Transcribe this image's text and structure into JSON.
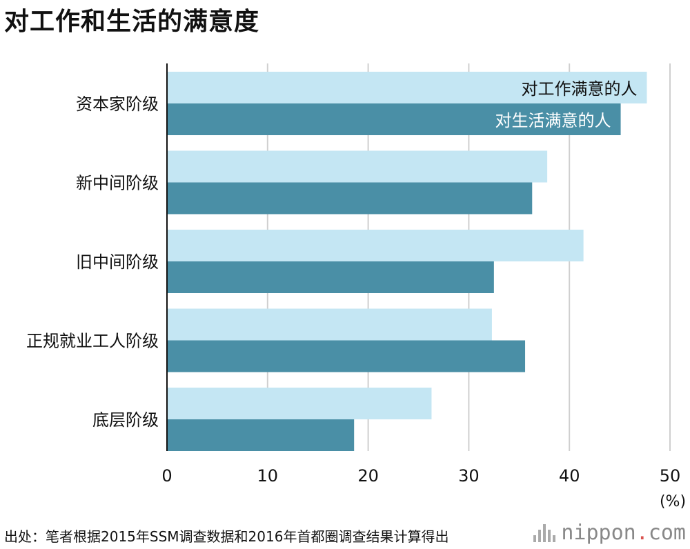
{
  "title": "对工作和生活的满意度",
  "source": "出处：笔者根据2015年SSM调查数据和2016年首都圈调查结果计算得出",
  "logo": {
    "name": "nippon",
    "dot": ".",
    "suffix": "com"
  },
  "colors": {
    "work": "#c4e6f3",
    "life": "#4a8fa6",
    "grid": "#cfcfcf",
    "axis": "#111111"
  },
  "chart_data": {
    "type": "bar",
    "orientation": "horizontal",
    "categories": [
      "资本家阶级",
      "新中间阶级",
      "旧中间阶级",
      "正规就业工人阶级",
      "底层阶级"
    ],
    "series": [
      {
        "name": "对工作满意的人",
        "values": [
          47.7,
          37.8,
          41.4,
          32.3,
          26.3
        ]
      },
      {
        "name": "对生活满意的人",
        "values": [
          45.1,
          36.3,
          32.5,
          35.6,
          18.6
        ]
      }
    ],
    "xlim": [
      0,
      50
    ],
    "xticks": [
      0,
      10,
      20,
      30,
      40,
      50
    ],
    "xunit": "(%)",
    "grid": true,
    "legend": "inside-first-bars"
  }
}
